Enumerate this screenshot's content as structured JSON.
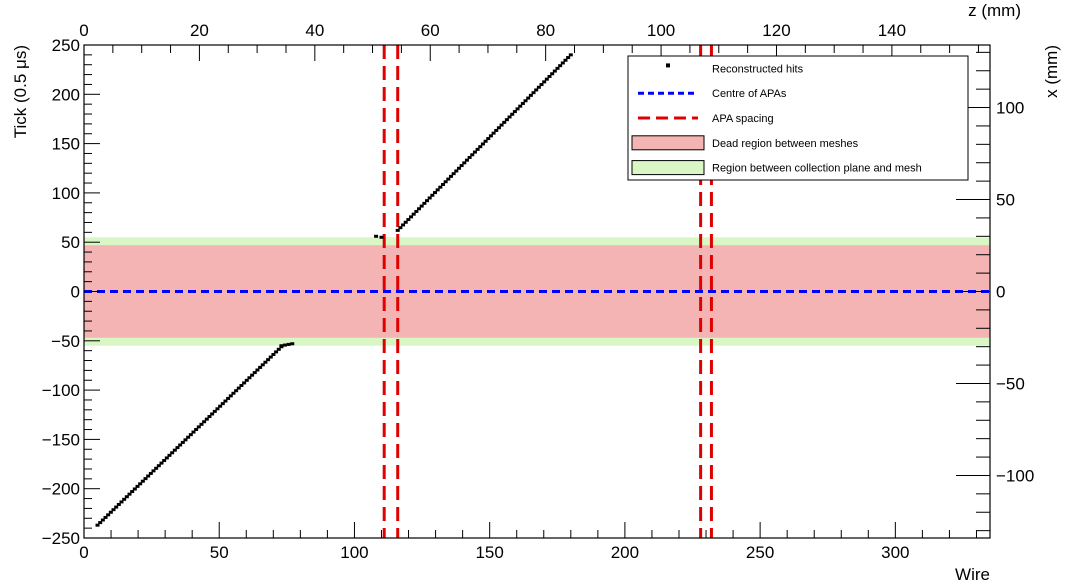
{
  "chart_data": {
    "type": "scatter",
    "title": "",
    "xlabel": "Wire",
    "ylabel": "Tick (0.5 μs)",
    "x2label": "z (mm)",
    "y2label": "x (mm)",
    "xlim": [
      0,
      335
    ],
    "ylim": [
      -250,
      250
    ],
    "x2lim": [
      0,
      157
    ],
    "y2lim": [
      -134,
      134
    ],
    "x_ticks": [
      0,
      50,
      100,
      150,
      200,
      250,
      300
    ],
    "y_ticks": [
      -250,
      -200,
      -150,
      -100,
      -50,
      0,
      50,
      100,
      150,
      200,
      250
    ],
    "x2_ticks": [
      0,
      20,
      40,
      60,
      80,
      100,
      120,
      140
    ],
    "y2_ticks": [
      -100,
      -50,
      0,
      50,
      100
    ],
    "grid": false,
    "legend_position": "top-right",
    "colors": {
      "hits": "#000000",
      "centre": "#0000ff",
      "apa": "#e00000",
      "dead": "#f4b4b4",
      "collection": "#d9f7c4"
    },
    "regions": {
      "dead_between_meshes": [
        -47,
        47
      ],
      "collection_to_mesh": [
        [
          -55,
          -47
        ],
        [
          47,
          55
        ]
      ]
    },
    "centre_of_apas_y": 0,
    "apa_spacing_x": [
      111,
      116,
      228,
      232
    ],
    "legend": [
      {
        "label": "Reconstructed hits",
        "symbol": "marker"
      },
      {
        "label": "Centre of APAs",
        "symbol": "blue-dash"
      },
      {
        "label": "APA spacing",
        "symbol": "red-dash"
      },
      {
        "label": "Dead region between meshes",
        "symbol": "red-box"
      },
      {
        "label": "Region between collection plane and mesh",
        "symbol": "green-box"
      }
    ],
    "series": [
      {
        "name": "Reconstructed hits",
        "segments": [
          {
            "x_start": 5,
            "y_start": -237,
            "x_end": 73,
            "y_end": -56,
            "count": 70
          },
          {
            "x_start": 73,
            "y_start": -55,
            "x_end": 77,
            "y_end": -53,
            "count": 4
          },
          {
            "x_start": 108,
            "y_start": 56,
            "x_end": 110,
            "y_end": 55,
            "count": 2
          },
          {
            "x_start": 116,
            "y_start": 62,
            "x_end": 180,
            "y_end": 240,
            "count": 66
          }
        ]
      }
    ]
  }
}
